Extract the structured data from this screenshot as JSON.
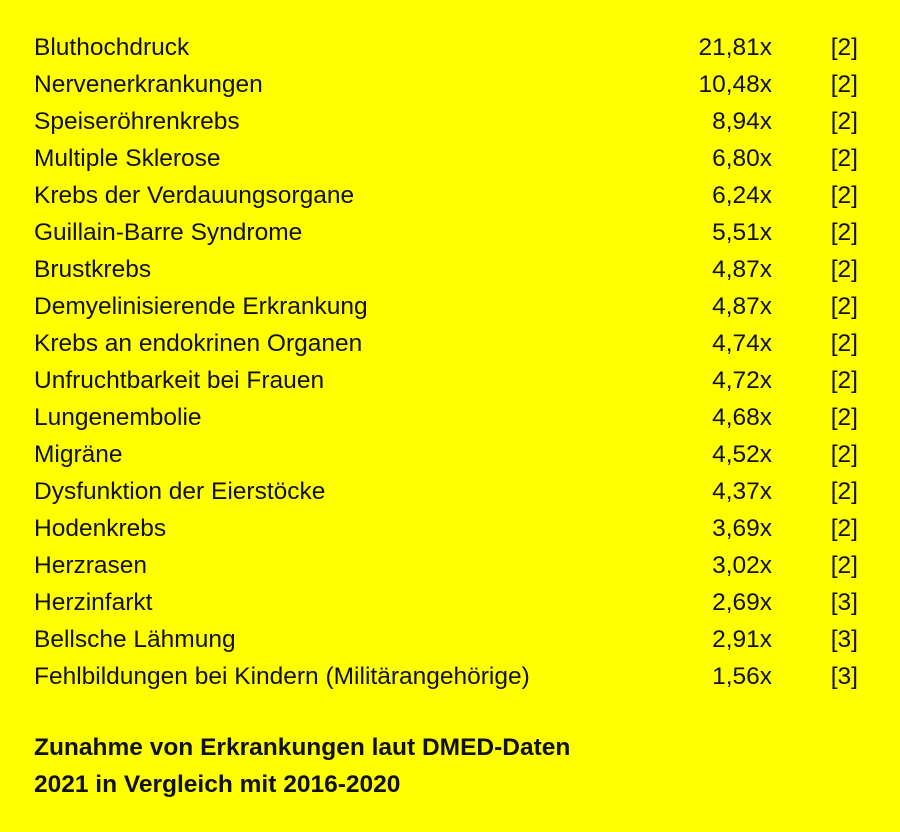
{
  "table": {
    "rows": [
      {
        "name": "Bluthochdruck",
        "factor": "21,81x",
        "ref": "[2]"
      },
      {
        "name": "Nervenerkrankungen",
        "factor": "10,48x",
        "ref": "[2]"
      },
      {
        "name": "Speiseröhrenkrebs",
        "factor": "8,94x",
        "ref": "[2]"
      },
      {
        "name": "Multiple Sklerose",
        "factor": "6,80x",
        "ref": "[2]"
      },
      {
        "name": "Krebs der Verdauungsorgane",
        "factor": "6,24x",
        "ref": "[2]"
      },
      {
        "name": "Guillain-Barre Syndrome",
        "factor": "5,51x",
        "ref": "[2]"
      },
      {
        "name": "Brustkrebs",
        "factor": "4,87x",
        "ref": "[2]"
      },
      {
        "name": "Demyelinisierende Erkrankung",
        "factor": "4,87x",
        "ref": "[2]"
      },
      {
        "name": "Krebs an endokrinen Organen",
        "factor": "4,74x",
        "ref": "[2]"
      },
      {
        "name": "Unfruchtbarkeit bei Frauen",
        "factor": "4,72x",
        "ref": "[2]"
      },
      {
        "name": "Lungenembolie",
        "factor": "4,68x",
        "ref": "[2]"
      },
      {
        "name": "Migräne",
        "factor": "4,52x",
        "ref": "[2]"
      },
      {
        "name": "Dysfunktion der Eierstöcke",
        "factor": "4,37x",
        "ref": "[2]"
      },
      {
        "name": "Hodenkrebs",
        "factor": "3,69x",
        "ref": "[2]"
      },
      {
        "name": "Herzrasen",
        "factor": "3,02x",
        "ref": "[2]"
      },
      {
        "name": "Herzinfarkt",
        "factor": "2,69x",
        "ref": "[3]"
      },
      {
        "name": "Bellsche Lähmung",
        "factor": "2,91x",
        "ref": "[3]"
      },
      {
        "name": "Fehlbildungen bei Kindern (Militärangehörige)",
        "factor": "1,56x",
        "ref": "[3]"
      }
    ]
  },
  "caption": {
    "line1": "Zunahme von Erkrankungen laut DMED-Daten",
    "line2": "2021 in Vergleich mit 2016-2020"
  },
  "colors": {
    "background": "#ffff00",
    "text": "#111111"
  }
}
